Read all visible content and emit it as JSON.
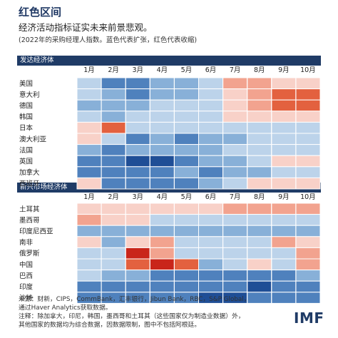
{
  "header": {
    "title": "红色区间",
    "subtitle": "经济活动指标证实未来前景悲观。",
    "note": "(2022年的采购经理人指数。蓝色代表扩张，红色代表收缩)"
  },
  "footer": {
    "source_line1": "来源：财新，CIPS，CommBank，汇丰银行，Jibun Bank，RBC，S&P Global，",
    "source_line2": "通过Haver Analytics获取数据。",
    "note_line1": "注释：除加拿大，印尼，韩国，墨西哥和土耳其（这些国家仅为制造业数据）外，",
    "note_line2": "其他国家的数据均为综合数据，因数据限制，图中不包括阿根廷。",
    "logo": "IMF"
  },
  "colors": {
    "section_bar": "#1f3b66",
    "title": "#1f3864"
  },
  "chart_data": {
    "type": "heatmap",
    "months": [
      "1月",
      "2月",
      "3月",
      "4月",
      "5月",
      "6月",
      "7月",
      "8月",
      "9月",
      "10月"
    ],
    "value_note": "cell values: positive = expansion (blue), negative = contraction (red); signed shade intensity 0-4",
    "groups": [
      {
        "name": "发达经济体",
        "rows": [
          {
            "country": "美国",
            "values": [
              1,
              3,
              3,
              2,
              2,
              1,
              -2,
              -2,
              -1,
              -1
            ]
          },
          {
            "country": "意大利",
            "values": [
              1,
              2,
              3,
              2,
              2,
              1,
              -1,
              -2,
              -3,
              -3
            ]
          },
          {
            "country": "德国",
            "values": [
              2,
              2,
              2,
              1,
              1,
              1,
              -1,
              -2,
              -3,
              -3
            ]
          },
          {
            "country": "韩国",
            "values": [
              1,
              2,
              1,
              1,
              1,
              1,
              -1,
              -1,
              -1,
              -1
            ]
          },
          {
            "country": "日本",
            "values": [
              -1,
              -3,
              1,
              1,
              1,
              1,
              1,
              1,
              1,
              1
            ]
          },
          {
            "country": "澳大利亚",
            "values": [
              -1,
              1,
              3,
              2,
              3,
              2,
              2,
              1,
              1,
              1
            ]
          },
          {
            "country": "法国",
            "values": [
              2,
              3,
              2,
              2,
              2,
              2,
              1,
              1,
              1,
              1
            ]
          },
          {
            "country": "英国",
            "values": [
              3,
              3,
              4,
              4,
              3,
              2,
              2,
              1,
              -1,
              -1
            ]
          },
          {
            "country": "加拿大",
            "values": [
              3,
              3,
              3,
              3,
              2,
              3,
              2,
              2,
              1,
              1
            ]
          },
          {
            "country": "西班牙",
            "values": [
              -1,
              3,
              3,
              3,
              3,
              2,
              1,
              -1,
              -1,
              -1
            ]
          }
        ]
      },
      {
        "name": "新兴市场经济体",
        "rows": [
          {
            "country": "土耳其",
            "values": [
              -1,
              -1,
              -1,
              -1,
              -1,
              -1,
              -2,
              -2,
              -2,
              -2
            ]
          },
          {
            "country": "墨西哥",
            "values": [
              -2,
              -1,
              -1,
              1,
              1,
              1,
              1,
              1,
              1,
              1
            ]
          },
          {
            "country": "印度尼西亚",
            "values": [
              2,
              2,
              2,
              2,
              2,
              2,
              2,
              2,
              2,
              2
            ]
          },
          {
            "country": "南非",
            "values": [
              -1,
              2,
              -1,
              -2,
              1,
              1,
              1,
              1,
              -2,
              -1
            ]
          },
          {
            "country": "俄罗斯",
            "values": [
              1,
              1,
              -4,
              -2,
              1,
              1,
              1,
              1,
              1,
              -2
            ]
          },
          {
            "country": "中国",
            "values": [
              1,
              1,
              -3,
              -4,
              -3,
              2,
              1,
              -1,
              1,
              -2
            ]
          },
          {
            "country": "巴西",
            "values": [
              1,
              2,
              2,
              3,
              3,
              3,
              3,
              3,
              3,
              2
            ]
          },
          {
            "country": "印度",
            "values": [
              3,
              3,
              3,
              3,
              3,
              3,
              3,
              4,
              3,
              3
            ]
          },
          {
            "country": "沙特",
            "values": [
              3,
              3,
              3,
              3,
              3,
              4,
              4,
              3,
              3,
              3
            ]
          }
        ]
      }
    ]
  }
}
